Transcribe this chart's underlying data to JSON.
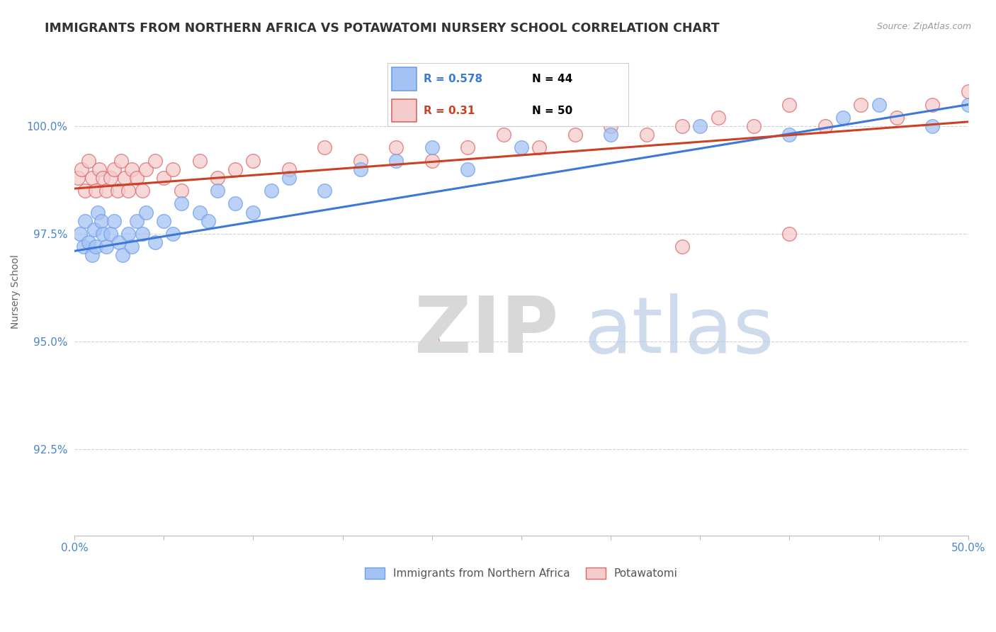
{
  "title": "IMMIGRANTS FROM NORTHERN AFRICA VS POTAWATOMI NURSERY SCHOOL CORRELATION CHART",
  "source": "Source: ZipAtlas.com",
  "ylabel": "Nursery School",
  "xlim": [
    0.0,
    50.0
  ],
  "ylim": [
    90.5,
    101.8
  ],
  "yticks": [
    92.5,
    95.0,
    97.5,
    100.0
  ],
  "ytick_labels": [
    "92.5%",
    "95.0%",
    "97.5%",
    "100.0%"
  ],
  "xticks": [
    0.0,
    5.0,
    10.0,
    15.0,
    20.0,
    25.0,
    30.0,
    35.0,
    40.0,
    45.0,
    50.0
  ],
  "blue_R": 0.578,
  "blue_N": 44,
  "pink_R": 0.31,
  "pink_N": 50,
  "blue_color": "#a4c2f4",
  "pink_color": "#f4cccc",
  "blue_edge_color": "#6d9eeb",
  "pink_edge_color": "#e06666",
  "blue_line_color": "#3c78d8",
  "pink_line_color": "#cc4125",
  "legend_label_blue": "Immigrants from Northern Africa",
  "legend_label_pink": "Potawatomi",
  "watermark_zip": "ZIP",
  "watermark_atlas": "atlas",
  "title_color": "#333333",
  "axis_label_color": "#666666",
  "tick_color": "#4a86c8",
  "grid_color": "#cccccc",
  "blue_trend_x0": 0.0,
  "blue_trend_y0": 97.1,
  "blue_trend_x1": 50.0,
  "blue_trend_y1": 100.5,
  "pink_trend_x0": 0.0,
  "pink_trend_y0": 98.55,
  "pink_trend_x1": 50.0,
  "pink_trend_y1": 100.1,
  "blue_x": [
    0.3,
    0.5,
    0.6,
    0.8,
    1.0,
    1.1,
    1.2,
    1.3,
    1.5,
    1.6,
    1.8,
    2.0,
    2.2,
    2.5,
    2.7,
    3.0,
    3.2,
    3.5,
    3.8,
    4.0,
    4.5,
    5.0,
    5.5,
    6.0,
    7.0,
    7.5,
    8.0,
    9.0,
    10.0,
    11.0,
    12.0,
    14.0,
    16.0,
    18.0,
    20.0,
    22.0,
    25.0,
    30.0,
    35.0,
    40.0,
    43.0,
    45.0,
    48.0,
    50.0
  ],
  "blue_y": [
    97.5,
    97.2,
    97.8,
    97.3,
    97.0,
    97.6,
    97.2,
    98.0,
    97.8,
    97.5,
    97.2,
    97.5,
    97.8,
    97.3,
    97.0,
    97.5,
    97.2,
    97.8,
    97.5,
    98.0,
    97.3,
    97.8,
    97.5,
    98.2,
    98.0,
    97.8,
    98.5,
    98.2,
    98.0,
    98.5,
    98.8,
    98.5,
    99.0,
    99.2,
    99.5,
    99.0,
    99.5,
    99.8,
    100.0,
    99.8,
    100.2,
    100.5,
    100.0,
    100.5
  ],
  "pink_x": [
    0.2,
    0.4,
    0.6,
    0.8,
    1.0,
    1.2,
    1.4,
    1.6,
    1.8,
    2.0,
    2.2,
    2.4,
    2.6,
    2.8,
    3.0,
    3.2,
    3.5,
    3.8,
    4.0,
    4.5,
    5.0,
    5.5,
    6.0,
    7.0,
    8.0,
    9.0,
    10.0,
    12.0,
    14.0,
    16.0,
    18.0,
    20.0,
    22.0,
    24.0,
    26.0,
    28.0,
    30.0,
    32.0,
    34.0,
    36.0,
    38.0,
    40.0,
    42.0,
    44.0,
    46.0,
    48.0,
    50.0,
    20.0,
    34.0,
    40.0
  ],
  "pink_y": [
    98.8,
    99.0,
    98.5,
    99.2,
    98.8,
    98.5,
    99.0,
    98.8,
    98.5,
    98.8,
    99.0,
    98.5,
    99.2,
    98.8,
    98.5,
    99.0,
    98.8,
    98.5,
    99.0,
    99.2,
    98.8,
    99.0,
    98.5,
    99.2,
    98.8,
    99.0,
    99.2,
    99.0,
    99.5,
    99.2,
    99.5,
    99.2,
    99.5,
    99.8,
    99.5,
    99.8,
    100.0,
    99.8,
    100.0,
    100.2,
    100.0,
    100.5,
    100.0,
    100.5,
    100.2,
    100.5,
    100.8,
    95.0,
    97.2,
    97.5
  ]
}
